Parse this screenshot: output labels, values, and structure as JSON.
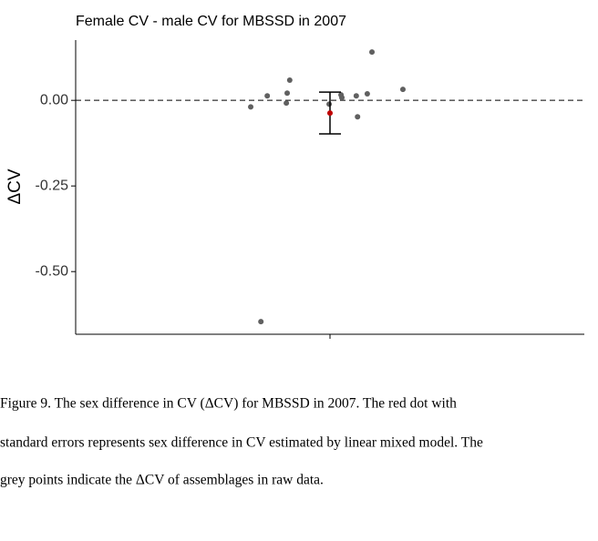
{
  "chart_data": {
    "type": "scatter",
    "title": "Female CV - male CV for MBSSD in 2007",
    "y_label": "ΔCV",
    "xlim": [
      0.4,
      1.6
    ],
    "xticks": [
      {
        "value": 1,
        "label": null
      }
    ],
    "ylim": [
      -0.683,
      0.176
    ],
    "yticks": [
      {
        "value": 0,
        "label": "0.00"
      },
      {
        "value": -0.25,
        "label": "-0.25"
      },
      {
        "value": -0.5,
        "label": "-0.50"
      }
    ],
    "reference_line": 0,
    "points": {
      "color": "#606060",
      "x": [
        0.813,
        0.852,
        0.899,
        0.897,
        0.905,
        0.837,
        0.998,
        1.026,
        1.028,
        1.062,
        1.065,
        1.088,
        1.099,
        1.172
      ],
      "values": [
        -0.019,
        0.013,
        0.021,
        -0.008,
        0.059,
        -0.646,
        -0.011,
        0.016,
        0.008,
        0.013,
        -0.048,
        0.019,
        0.141,
        0.032
      ]
    },
    "estimate": {
      "color": "#c00000",
      "x": 1,
      "value": -0.037,
      "error": 0.061
    }
  },
  "caption": [
    "Figure 9. The sex difference in CV (ΔCV) for MBSSD in 2007. The red dot with",
    "standard errors represents sex difference in CV estimated by linear mixed model. The",
    "grey points indicate the ΔCV of assemblages in raw data."
  ]
}
